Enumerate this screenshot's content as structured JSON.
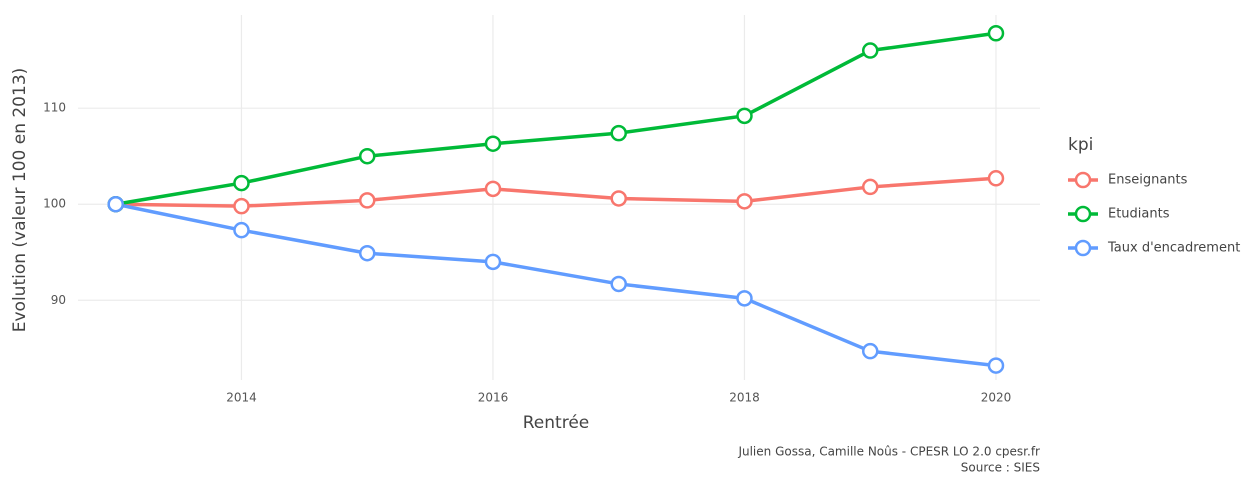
{
  "chart_data": {
    "type": "line",
    "x": [
      2013,
      2014,
      2015,
      2016,
      2017,
      2018,
      2019,
      2020
    ],
    "series": [
      {
        "name": "Enseignants",
        "color": "#f8766d",
        "values": [
          100,
          99.8,
          100.4,
          101.6,
          100.6,
          100.3,
          101.8,
          102.7
        ]
      },
      {
        "name": "Etudiants",
        "color": "#00ba38",
        "values": [
          100,
          102.2,
          105.0,
          106.3,
          107.4,
          109.2,
          116.0,
          117.8
        ]
      },
      {
        "name": "Taux d'encadrement",
        "color": "#619cff",
        "values": [
          100,
          97.3,
          94.9,
          94.0,
          91.7,
          90.2,
          84.7,
          83.2
        ]
      }
    ],
    "xlim": [
      2012.7,
      2020.35
    ],
    "xticks": [
      2014,
      2016,
      2018,
      2020
    ],
    "ylim": [
      81.7,
      119.7
    ],
    "yticks": [
      90,
      100,
      110
    ],
    "grid": true,
    "x_label": "Rentrée",
    "y_label": "Evolution (valeur 100 en 2013)",
    "legend_title": "kpi",
    "caption": [
      "Julien Gossa, Camille Noûs - CPESR LO 2.0 cpesr.fr",
      "Source : SIES"
    ]
  }
}
